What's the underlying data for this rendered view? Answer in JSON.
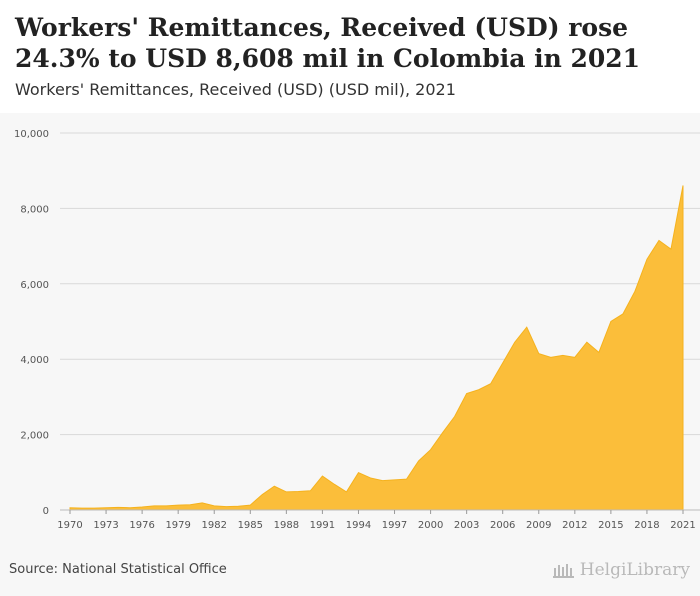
{
  "header": {
    "title": "Workers' Remittances, Received (USD) rose 24.3% to USD 8,608 mil in Colombia in 2021",
    "subtitle": "Workers' Remittances, Received (USD) (USD mil), 2021"
  },
  "footer": {
    "source": "Source: National Statistical Office",
    "brand": "HelgiLibrary"
  },
  "colors": {
    "fill": "#fbbe3a",
    "stroke": "#f5b21e",
    "grid": "#d9d9d9",
    "axis_text": "#555555"
  },
  "chart_data": {
    "type": "area",
    "title": "Workers' Remittances, Received (USD) (USD mil), 2021",
    "xlabel": "",
    "ylabel": "",
    "ylim": [
      0,
      10000
    ],
    "xlim": [
      1970,
      2021
    ],
    "grid": true,
    "y_ticks": [
      0,
      2000,
      4000,
      6000,
      8000,
      10000
    ],
    "y_tick_labels": [
      "0",
      "2,000",
      "4,000",
      "6,000",
      "8,000",
      "10,000"
    ],
    "x_ticks": [
      1970,
      1973,
      1976,
      1979,
      1982,
      1985,
      1988,
      1991,
      1994,
      1997,
      2000,
      2003,
      2006,
      2009,
      2012,
      2015,
      2018,
      2021
    ],
    "x_tick_labels": [
      "1970",
      "1973",
      "1976",
      "1979",
      "1982",
      "1985",
      "1988",
      "1991",
      "1994",
      "1997",
      "2000",
      "2003",
      "2006",
      "2009",
      "2012",
      "2015",
      "2018",
      "2021"
    ],
    "x": [
      1970,
      1971,
      1972,
      1973,
      1974,
      1975,
      1976,
      1977,
      1978,
      1979,
      1980,
      1981,
      1982,
      1983,
      1984,
      1985,
      1986,
      1987,
      1988,
      1989,
      1990,
      1991,
      1992,
      1993,
      1994,
      1995,
      1996,
      1997,
      1998,
      1999,
      2000,
      2001,
      2002,
      2003,
      2004,
      2005,
      2006,
      2007,
      2008,
      2009,
      2010,
      2011,
      2012,
      2013,
      2014,
      2015,
      2016,
      2017,
      2018,
      2019,
      2020,
      2021
    ],
    "series": [
      {
        "values": [
          60,
          50,
          50,
          60,
          70,
          60,
          80,
          110,
          110,
          130,
          140,
          190,
          110,
          90,
          100,
          130,
          410,
          630,
          480,
          490,
          510,
          900,
          680,
          480,
          990,
          850,
          780,
          800,
          820,
          1300,
          1600,
          2050,
          2480,
          3090,
          3190,
          3350,
          3900,
          4450,
          4850,
          4150,
          4050,
          4100,
          4050,
          4450,
          4180,
          5000,
          5200,
          5800,
          6650,
          7150,
          6920,
          8608
        ]
      }
    ]
  }
}
